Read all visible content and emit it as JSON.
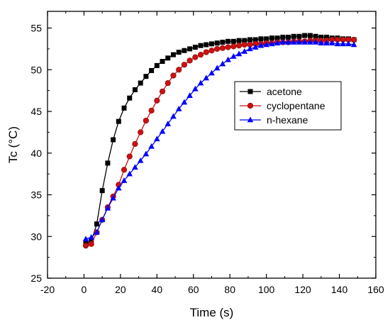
{
  "chart_data": {
    "type": "line",
    "title": "",
    "xlabel": "Time (s)",
    "ylabel": "Tc (°C)",
    "xlim": [
      -20,
      160
    ],
    "ylim": [
      25,
      57
    ],
    "xticks": [
      -20,
      0,
      20,
      40,
      60,
      80,
      100,
      120,
      140,
      160
    ],
    "yticks": [
      25,
      30,
      35,
      40,
      45,
      50,
      55
    ],
    "grid": false,
    "legend_position": "right",
    "series": [
      {
        "name": "acetone",
        "color": "#000000",
        "marker": "square",
        "x": [
          1,
          4,
          7,
          10,
          13,
          16,
          19,
          22,
          25,
          28,
          31,
          34,
          37,
          40,
          43,
          46,
          49,
          52,
          55,
          58,
          61,
          64,
          67,
          70,
          73,
          76,
          79,
          82,
          85,
          88,
          91,
          94,
          97,
          100,
          103,
          106,
          109,
          112,
          115,
          118,
          121,
          124,
          127,
          130,
          133,
          136,
          139,
          142,
          145,
          148
        ],
        "y": [
          29.2,
          29.4,
          31.5,
          35.5,
          38.8,
          41.6,
          43.8,
          45.4,
          46.6,
          47.6,
          48.4,
          49.2,
          49.9,
          50.5,
          51.0,
          51.4,
          51.8,
          52.1,
          52.3,
          52.5,
          52.7,
          52.9,
          53.0,
          53.1,
          53.2,
          53.3,
          53.4,
          53.4,
          53.5,
          53.5,
          53.6,
          53.6,
          53.7,
          53.7,
          53.8,
          53.8,
          53.9,
          53.9,
          54.0,
          54.0,
          54.1,
          54.1,
          54.0,
          53.9,
          53.9,
          53.8,
          53.8,
          53.7,
          53.7,
          53.6
        ]
      },
      {
        "name": "cyclopentane",
        "color": "#cc1111",
        "marker": "circle",
        "x": [
          1,
          4,
          7,
          10,
          13,
          16,
          19,
          22,
          25,
          28,
          31,
          34,
          37,
          40,
          43,
          46,
          49,
          52,
          55,
          58,
          61,
          64,
          67,
          70,
          73,
          76,
          79,
          82,
          85,
          88,
          91,
          94,
          97,
          100,
          103,
          106,
          109,
          112,
          115,
          118,
          121,
          124,
          127,
          130,
          133,
          136,
          139,
          142,
          145,
          148
        ],
        "y": [
          28.9,
          29.1,
          30.5,
          32.0,
          33.5,
          34.8,
          36.2,
          38.0,
          39.6,
          41.1,
          42.5,
          43.9,
          45.1,
          46.3,
          47.4,
          48.4,
          49.3,
          50.0,
          50.6,
          51.1,
          51.5,
          51.8,
          52.1,
          52.3,
          52.5,
          52.6,
          52.7,
          52.8,
          52.9,
          53.0,
          53.0,
          53.1,
          53.1,
          53.2,
          53.2,
          53.3,
          53.3,
          53.3,
          53.4,
          53.4,
          53.4,
          53.5,
          53.5,
          53.5,
          53.5,
          53.6,
          53.6,
          53.6,
          53.6,
          53.6
        ]
      },
      {
        "name": "n-hexane",
        "color": "#0000ff",
        "marker": "triangle",
        "x": [
          1,
          4,
          7,
          10,
          13,
          16,
          19,
          22,
          25,
          28,
          31,
          34,
          37,
          40,
          43,
          46,
          49,
          52,
          55,
          58,
          61,
          64,
          67,
          70,
          73,
          76,
          79,
          82,
          85,
          88,
          91,
          94,
          97,
          100,
          103,
          106,
          109,
          112,
          115,
          118,
          121,
          124,
          127,
          130,
          133,
          136,
          139,
          142,
          145,
          148
        ],
        "y": [
          29.7,
          29.9,
          30.5,
          32.0,
          33.4,
          34.6,
          35.8,
          36.7,
          37.5,
          38.3,
          39.1,
          39.9,
          40.8,
          41.7,
          42.6,
          43.5,
          44.4,
          45.3,
          46.1,
          46.9,
          47.7,
          48.4,
          49.0,
          49.6,
          50.2,
          50.7,
          51.2,
          51.6,
          51.9,
          52.2,
          52.5,
          52.7,
          52.9,
          53.0,
          53.1,
          53.2,
          53.3,
          53.3,
          53.3,
          53.3,
          53.3,
          53.3,
          53.3,
          53.2,
          53.2,
          53.2,
          53.1,
          53.1,
          53.1,
          53.0
        ]
      }
    ]
  }
}
